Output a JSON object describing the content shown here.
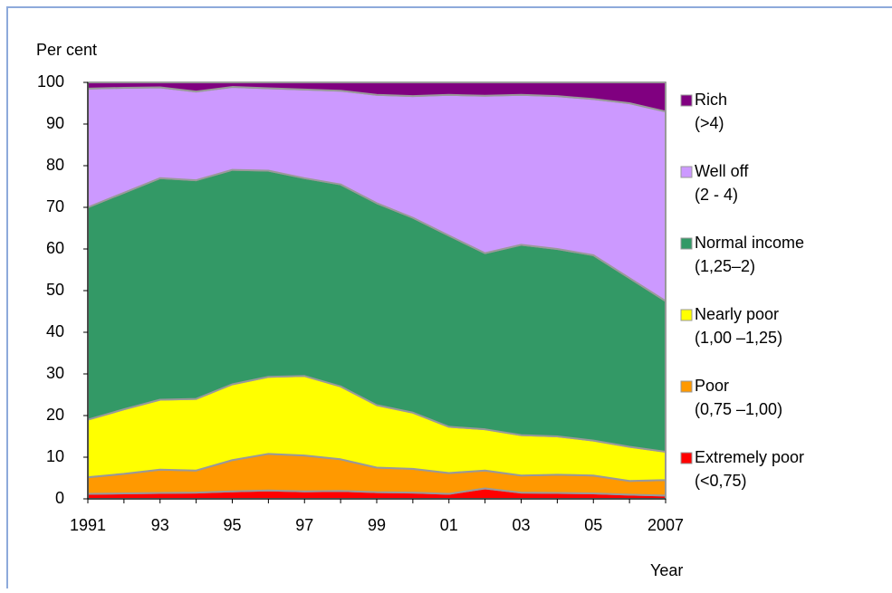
{
  "chart_data": {
    "type": "stacked-area",
    "y_label": "Per cent",
    "x_label": "Year",
    "categories": [
      "1991",
      null,
      "93",
      null,
      "95",
      null,
      "97",
      null,
      "99",
      null,
      "01",
      null,
      "03",
      null,
      "05",
      null,
      "2007"
    ],
    "ylim": [
      0,
      100
    ],
    "yticks": [
      0,
      10,
      20,
      30,
      40,
      50,
      60,
      70,
      80,
      90,
      100
    ],
    "grid": false,
    "series": [
      {
        "name": "Extremely poor",
        "range": "(<0,75)",
        "color": "#ff0000",
        "values": [
          1.2,
          1.3,
          1.4,
          1.5,
          1.8,
          2.0,
          1.8,
          1.9,
          1.6,
          1.5,
          1.2,
          2.5,
          1.5,
          1.4,
          1.3,
          1.0,
          0.8
        ]
      },
      {
        "name": "Poor",
        "range": "(0,75 –1,00)",
        "color": "#ff9900",
        "values": [
          4.0,
          4.7,
          5.6,
          5.3,
          7.5,
          8.8,
          8.6,
          7.6,
          5.9,
          5.7,
          5.0,
          4.3,
          4.1,
          4.4,
          4.3,
          3.3,
          3.7
        ]
      },
      {
        "name": "Nearly poor",
        "range": "(1,00 –1,25)",
        "color": "#ffff00",
        "values": [
          13.8,
          15.5,
          16.8,
          17.2,
          18.2,
          18.5,
          19.1,
          17.5,
          15.0,
          13.5,
          11.1,
          9.9,
          9.7,
          9.2,
          8.4,
          8.2,
          6.8
        ]
      },
      {
        "name": "Normal income",
        "range": "(1,25–2)",
        "color": "#339966",
        "values": [
          51.0,
          52.0,
          53.2,
          52.5,
          51.5,
          49.5,
          47.5,
          48.5,
          48.5,
          46.8,
          45.9,
          42.3,
          45.7,
          45.0,
          44.5,
          40.5,
          36.2
        ]
      },
      {
        "name": "Well off",
        "range": "(2  - 4)",
        "color": "#cc99ff",
        "values": [
          28.5,
          25.2,
          21.8,
          21.3,
          19.9,
          19.8,
          21.3,
          22.5,
          26.0,
          29.2,
          33.8,
          37.8,
          36.0,
          36.7,
          37.5,
          42.0,
          45.5
        ]
      },
      {
        "name": "Rich",
        "range": "(>4)",
        "color": "#800080",
        "values": [
          1.5,
          1.3,
          1.2,
          2.2,
          1.1,
          1.4,
          1.7,
          2.0,
          3.0,
          3.3,
          3.0,
          3.2,
          3.0,
          3.3,
          4.0,
          5.0,
          7.0
        ]
      }
    ]
  }
}
